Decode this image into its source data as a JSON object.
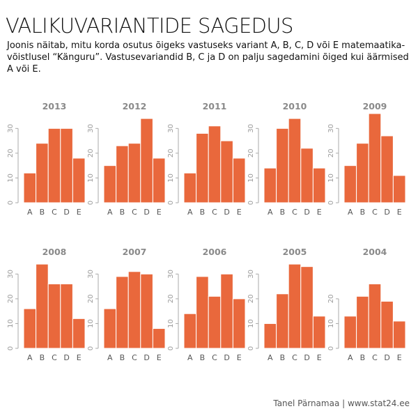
{
  "header": {
    "title": "VALIKUVARIANTIDE SAGEDUS",
    "subtitle": "Joonis näitab, mitu korda osutus õigeks vastuseks variant A, B, C, D või E matemaatika-võistlusel “Känguru”.  Vastusevariandid B, C ja D on palju sagedamini õiged kui äärmised A või E."
  },
  "footer": {
    "credit": "Tanel Pärnamaa | www.stat24.ee"
  },
  "colors": {
    "bar": "#e9683c",
    "axis": "#aaaaaa",
    "panel_title": "#8a8a8a"
  },
  "chart_data": [
    {
      "type": "bar",
      "title": "2013",
      "categories": [
        "A",
        "B",
        "C",
        "D",
        "E"
      ],
      "values": [
        12,
        24,
        30,
        30,
        18
      ],
      "ylim": [
        0,
        33
      ],
      "yticks": [
        0,
        10,
        20,
        30
      ]
    },
    {
      "type": "bar",
      "title": "2012",
      "categories": [
        "A",
        "B",
        "C",
        "D",
        "E"
      ],
      "values": [
        15,
        23,
        24,
        34,
        18
      ],
      "ylim": [
        0,
        36
      ],
      "yticks": [
        0,
        10,
        20,
        30
      ]
    },
    {
      "type": "bar",
      "title": "2011",
      "categories": [
        "A",
        "B",
        "C",
        "D",
        "E"
      ],
      "values": [
        12,
        28,
        31,
        25,
        18
      ],
      "ylim": [
        0,
        34
      ],
      "yticks": [
        0,
        10,
        20,
        30
      ]
    },
    {
      "type": "bar",
      "title": "2010",
      "categories": [
        "A",
        "B",
        "C",
        "D",
        "E"
      ],
      "values": [
        14,
        30,
        34,
        22,
        14
      ],
      "ylim": [
        0,
        36
      ],
      "yticks": [
        0,
        10,
        20,
        30
      ]
    },
    {
      "type": "bar",
      "title": "2009",
      "categories": [
        "A",
        "B",
        "C",
        "D",
        "E"
      ],
      "values": [
        15,
        24,
        36,
        27,
        11
      ],
      "ylim": [
        0,
        38
      ],
      "yticks": [
        0,
        10,
        20,
        30
      ]
    },
    {
      "type": "bar",
      "title": "2008",
      "categories": [
        "A",
        "B",
        "C",
        "D",
        "E"
      ],
      "values": [
        16,
        34,
        26,
        26,
        12
      ],
      "ylim": [
        0,
        36
      ],
      "yticks": [
        0,
        10,
        20,
        30
      ]
    },
    {
      "type": "bar",
      "title": "2007",
      "categories": [
        "A",
        "B",
        "C",
        "D",
        "E"
      ],
      "values": [
        16,
        29,
        31,
        30,
        8
      ],
      "ylim": [
        0,
        33
      ],
      "yticks": [
        0,
        10,
        20,
        30
      ]
    },
    {
      "type": "bar",
      "title": "2006",
      "categories": [
        "A",
        "B",
        "C",
        "D",
        "E"
      ],
      "values": [
        14,
        29,
        21,
        30,
        20
      ],
      "ylim": [
        0,
        32
      ],
      "yticks": [
        0,
        10,
        20,
        30
      ]
    },
    {
      "type": "bar",
      "title": "2005",
      "categories": [
        "A",
        "B",
        "C",
        "D",
        "E"
      ],
      "values": [
        10,
        22,
        34,
        33,
        13
      ],
      "ylim": [
        0,
        36
      ],
      "yticks": [
        0,
        10,
        20,
        30
      ]
    },
    {
      "type": "bar",
      "title": "2004",
      "categories": [
        "A",
        "B",
        "C",
        "D",
        "E"
      ],
      "values": [
        13,
        21,
        26,
        19,
        11
      ],
      "ylim": [
        0,
        28
      ],
      "yticks": [
        0,
        10,
        20
      ]
    }
  ]
}
